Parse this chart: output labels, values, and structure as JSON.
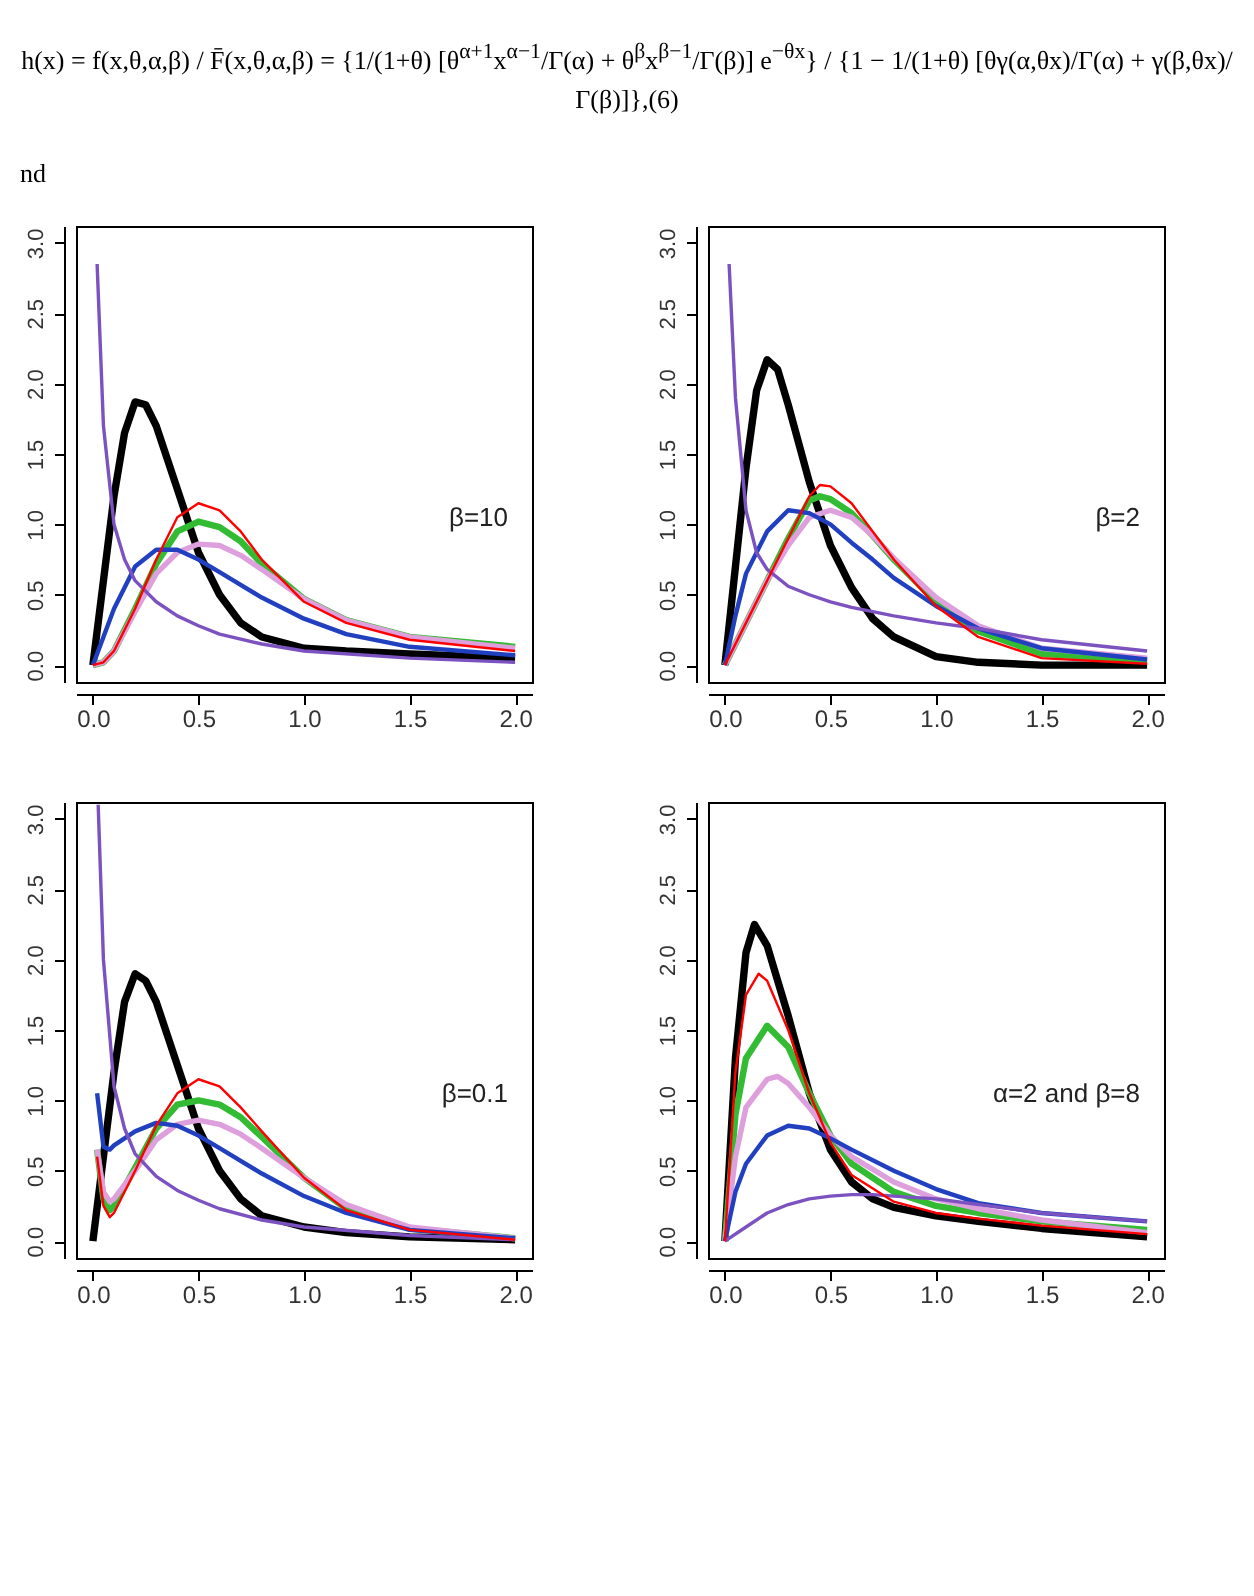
{
  "chart_data": [
    {
      "type": "line",
      "annotations": [
        "h(x) = f(x,θ,α,β) / F̄(x,θ,α,β) = {1/(1+θ) [θ$^{α+1}$x$^{α−1}$/Γ(α) + θ$^{β}$x$^{β−1}$/Γ(β)] e$^{−θx}$} / {1 − 1/(1+θ) [θγ(α,θx)/Γ(α) + γ(β,θx)/Γ(β)]},(6)",
        "nd",
        "β=10"
      ],
      "xlim": [
        -0.08,
        2.08
      ],
      "ylim": [
        -0.12,
        3.12
      ],
      "xticks": [
        {
          "value": 0,
          "label": "0.0"
        },
        {
          "value": 0.5,
          "label": "0.5"
        },
        {
          "value": 1,
          "label": "1.0"
        },
        {
          "value": 1.5,
          "label": "1.5"
        },
        {
          "value": 2,
          "label": "2.0"
        }
      ],
      "yticks": [
        {
          "value": 0,
          "label": "0.0"
        },
        {
          "value": 0.5,
          "label": "0.5"
        },
        {
          "value": 1,
          "label": "1.0"
        },
        {
          "value": 1.5,
          "label": "1.5"
        },
        {
          "value": 2,
          "label": "2.0"
        },
        {
          "value": 2.5,
          "label": "2.5"
        },
        {
          "value": 3,
          "label": "3.0"
        }
      ],
      "series": [
        {
          "color": "#000000",
          "x": [
            0,
            0.05,
            0.1,
            0.15,
            0.2,
            0.25,
            0.3,
            0.4,
            0.5,
            0.6,
            0.7,
            0.8,
            1.0,
            1.2,
            1.5,
            2.0
          ],
          "values": [
            0,
            0.6,
            1.2,
            1.65,
            1.87,
            1.85,
            1.7,
            1.25,
            0.8,
            0.5,
            0.3,
            0.2,
            0.12,
            0.1,
            0.08,
            0.05
          ]
        },
        {
          "color": "#ff0000",
          "x": [
            0,
            0.05,
            0.1,
            0.2,
            0.3,
            0.4,
            0.5,
            0.6,
            0.7,
            0.8,
            1.0,
            1.2,
            1.5,
            2.0
          ],
          "values": [
            0,
            0.02,
            0.1,
            0.4,
            0.75,
            1.05,
            1.15,
            1.1,
            0.95,
            0.75,
            0.45,
            0.3,
            0.18,
            0.1
          ]
        },
        {
          "color": "#33bb33",
          "x": [
            0,
            0.05,
            0.1,
            0.2,
            0.3,
            0.4,
            0.5,
            0.6,
            0.7,
            0.8,
            1.0,
            1.2,
            1.5,
            2.0
          ],
          "values": [
            0,
            0.02,
            0.1,
            0.4,
            0.72,
            0.95,
            1.02,
            0.98,
            0.88,
            0.72,
            0.47,
            0.32,
            0.2,
            0.13
          ]
        },
        {
          "color": "#dda0dd",
          "x": [
            0,
            0.05,
            0.1,
            0.2,
            0.3,
            0.4,
            0.5,
            0.6,
            0.7,
            0.8,
            1.0,
            1.2,
            1.5,
            2.0
          ],
          "values": [
            0,
            0.02,
            0.1,
            0.38,
            0.65,
            0.8,
            0.86,
            0.85,
            0.78,
            0.68,
            0.47,
            0.32,
            0.2,
            0.12
          ]
        },
        {
          "color": "#2040c0",
          "x": [
            0,
            0.05,
            0.1,
            0.2,
            0.3,
            0.4,
            0.5,
            0.6,
            0.7,
            0.8,
            1.0,
            1.2,
            1.5,
            2.0
          ],
          "values": [
            0,
            0.2,
            0.4,
            0.7,
            0.82,
            0.82,
            0.75,
            0.66,
            0.57,
            0.48,
            0.33,
            0.22,
            0.13,
            0.07
          ]
        },
        {
          "color": "#7b52c0",
          "x": [
            0.02,
            0.05,
            0.1,
            0.15,
            0.2,
            0.3,
            0.4,
            0.5,
            0.6,
            0.8,
            1.0,
            1.5,
            2.0
          ],
          "values": [
            2.85,
            1.7,
            1.0,
            0.75,
            0.6,
            0.45,
            0.35,
            0.28,
            0.22,
            0.15,
            0.1,
            0.05,
            0.02
          ]
        }
      ]
    },
    {
      "type": "line",
      "annotations": [
        "β=2"
      ],
      "xlim": [
        -0.08,
        2.08
      ],
      "ylim": [
        -0.12,
        3.12
      ],
      "xticks": [
        {
          "value": 0,
          "label": "0.0"
        },
        {
          "value": 0.5,
          "label": "0.5"
        },
        {
          "value": 1,
          "label": "1.0"
        },
        {
          "value": 1.5,
          "label": "1.5"
        },
        {
          "value": 2,
          "label": "2.0"
        }
      ],
      "yticks": [
        {
          "value": 0,
          "label": "0.0"
        },
        {
          "value": 0.5,
          "label": "0.5"
        },
        {
          "value": 1,
          "label": "1.0"
        },
        {
          "value": 1.5,
          "label": "1.5"
        },
        {
          "value": 2,
          "label": "2.0"
        },
        {
          "value": 2.5,
          "label": "2.5"
        },
        {
          "value": 3,
          "label": "3.0"
        }
      ],
      "series": [
        {
          "color": "#000000",
          "x": [
            0,
            0.05,
            0.1,
            0.15,
            0.2,
            0.25,
            0.3,
            0.4,
            0.5,
            0.6,
            0.7,
            0.8,
            1.0,
            1.2,
            1.5,
            2.0
          ],
          "values": [
            0,
            0.7,
            1.4,
            1.95,
            2.17,
            2.1,
            1.85,
            1.3,
            0.85,
            0.55,
            0.33,
            0.2,
            0.06,
            0.02,
            0,
            0
          ]
        },
        {
          "color": "#ff0000",
          "x": [
            0,
            0.1,
            0.2,
            0.3,
            0.4,
            0.45,
            0.5,
            0.6,
            0.7,
            0.8,
            1.0,
            1.2,
            1.5,
            2.0
          ],
          "values": [
            0,
            0.3,
            0.6,
            0.9,
            1.2,
            1.28,
            1.27,
            1.15,
            0.95,
            0.75,
            0.42,
            0.2,
            0.05,
            0.01
          ]
        },
        {
          "color": "#33bb33",
          "x": [
            0,
            0.1,
            0.2,
            0.3,
            0.4,
            0.45,
            0.5,
            0.6,
            0.7,
            0.8,
            1.0,
            1.2,
            1.5,
            2.0
          ],
          "values": [
            0,
            0.3,
            0.6,
            0.9,
            1.17,
            1.2,
            1.18,
            1.08,
            0.92,
            0.75,
            0.45,
            0.24,
            0.08,
            0.03
          ]
        },
        {
          "color": "#dda0dd",
          "x": [
            0,
            0.1,
            0.2,
            0.3,
            0.4,
            0.5,
            0.6,
            0.7,
            0.8,
            1.0,
            1.2,
            1.5,
            2.0
          ],
          "values": [
            0,
            0.3,
            0.6,
            0.85,
            1.05,
            1.1,
            1.05,
            0.92,
            0.76,
            0.48,
            0.28,
            0.12,
            0.05
          ]
        },
        {
          "color": "#2040c0",
          "x": [
            0,
            0.05,
            0.1,
            0.2,
            0.3,
            0.4,
            0.5,
            0.6,
            0.7,
            0.8,
            1.0,
            1.2,
            1.5,
            2.0
          ],
          "values": [
            0,
            0.35,
            0.65,
            0.95,
            1.1,
            1.08,
            1.0,
            0.87,
            0.75,
            0.62,
            0.42,
            0.26,
            0.12,
            0.04
          ]
        },
        {
          "color": "#7b52c0",
          "x": [
            0.02,
            0.05,
            0.1,
            0.15,
            0.2,
            0.3,
            0.4,
            0.5,
            0.6,
            0.8,
            1.0,
            1.2,
            1.5,
            2.0
          ],
          "values": [
            2.85,
            1.9,
            1.1,
            0.8,
            0.68,
            0.56,
            0.5,
            0.45,
            0.41,
            0.35,
            0.3,
            0.26,
            0.18,
            0.1
          ]
        }
      ]
    },
    {
      "type": "line",
      "annotations": [
        "β=0.1"
      ],
      "xlim": [
        -0.08,
        2.08
      ],
      "ylim": [
        -0.12,
        3.12
      ],
      "xticks": [
        {
          "value": 0,
          "label": "0.0"
        },
        {
          "value": 0.5,
          "label": "0.5"
        },
        {
          "value": 1,
          "label": "1.0"
        },
        {
          "value": 1.5,
          "label": "1.5"
        },
        {
          "value": 2,
          "label": "2.0"
        }
      ],
      "yticks": [
        {
          "value": 0,
          "label": "0.0"
        },
        {
          "value": 0.5,
          "label": "0.5"
        },
        {
          "value": 1,
          "label": "1.0"
        },
        {
          "value": 1.5,
          "label": "1.5"
        },
        {
          "value": 2,
          "label": "2.0"
        },
        {
          "value": 2.5,
          "label": "2.5"
        },
        {
          "value": 3,
          "label": "3.0"
        }
      ],
      "series": [
        {
          "color": "#000000",
          "x": [
            0,
            0.05,
            0.1,
            0.15,
            0.2,
            0.25,
            0.3,
            0.4,
            0.5,
            0.6,
            0.7,
            0.8,
            1.0,
            1.2,
            1.5,
            2.0
          ],
          "values": [
            0,
            0.6,
            1.2,
            1.7,
            1.9,
            1.85,
            1.7,
            1.25,
            0.8,
            0.5,
            0.3,
            0.18,
            0.1,
            0.06,
            0.03,
            0.01
          ]
        },
        {
          "color": "#ff0000",
          "x": [
            0.02,
            0.05,
            0.08,
            0.1,
            0.2,
            0.3,
            0.4,
            0.5,
            0.6,
            0.7,
            0.8,
            1.0,
            1.2,
            1.5,
            2.0
          ],
          "values": [
            0.6,
            0.25,
            0.17,
            0.2,
            0.5,
            0.82,
            1.05,
            1.15,
            1.1,
            0.95,
            0.78,
            0.45,
            0.22,
            0.08,
            0.01
          ]
        },
        {
          "color": "#33bb33",
          "x": [
            0.02,
            0.05,
            0.08,
            0.1,
            0.2,
            0.3,
            0.4,
            0.5,
            0.6,
            0.7,
            0.8,
            1.0,
            1.2,
            1.5,
            2.0
          ],
          "values": [
            0.65,
            0.3,
            0.22,
            0.25,
            0.52,
            0.8,
            0.97,
            1.0,
            0.97,
            0.88,
            0.74,
            0.45,
            0.23,
            0.09,
            0.02
          ]
        },
        {
          "color": "#dda0dd",
          "x": [
            0.02,
            0.05,
            0.08,
            0.1,
            0.2,
            0.3,
            0.4,
            0.5,
            0.6,
            0.7,
            0.8,
            1.0,
            1.2,
            1.5,
            2.0
          ],
          "values": [
            0.65,
            0.35,
            0.28,
            0.3,
            0.5,
            0.72,
            0.83,
            0.86,
            0.83,
            0.76,
            0.66,
            0.45,
            0.26,
            0.1,
            0.02
          ]
        },
        {
          "color": "#2040c0",
          "x": [
            0.02,
            0.05,
            0.08,
            0.1,
            0.2,
            0.3,
            0.4,
            0.5,
            0.6,
            0.7,
            0.8,
            1.0,
            1.2,
            1.5,
            2.0
          ],
          "values": [
            1.05,
            0.67,
            0.65,
            0.68,
            0.78,
            0.84,
            0.82,
            0.75,
            0.66,
            0.57,
            0.48,
            0.32,
            0.2,
            0.08,
            0.02
          ]
        },
        {
          "color": "#7b52c0",
          "x": [
            0.025,
            0.05,
            0.1,
            0.15,
            0.2,
            0.3,
            0.4,
            0.5,
            0.6,
            0.8,
            1.0,
            1.5,
            2.0
          ],
          "values": [
            3.1,
            2.0,
            1.1,
            0.8,
            0.62,
            0.46,
            0.36,
            0.29,
            0.23,
            0.15,
            0.1,
            0.04,
            0.01
          ]
        }
      ]
    },
    {
      "type": "line",
      "annotations": [
        "α=2 and β=8"
      ],
      "xlim": [
        -0.08,
        2.08
      ],
      "ylim": [
        -0.12,
        3.12
      ],
      "xticks": [
        {
          "value": 0,
          "label": "0.0"
        },
        {
          "value": 0.5,
          "label": "0.5"
        },
        {
          "value": 1,
          "label": "1.0"
        },
        {
          "value": 1.5,
          "label": "1.5"
        },
        {
          "value": 2,
          "label": "2.0"
        }
      ],
      "yticks": [
        {
          "value": 0,
          "label": "0.0"
        },
        {
          "value": 0.5,
          "label": "0.5"
        },
        {
          "value": 1,
          "label": "1.0"
        },
        {
          "value": 1.5,
          "label": "1.5"
        },
        {
          "value": 2,
          "label": "2.0"
        },
        {
          "value": 2.5,
          "label": "2.5"
        },
        {
          "value": 3,
          "label": "3.0"
        }
      ],
      "series": [
        {
          "color": "#000000",
          "x": [
            0,
            0.05,
            0.1,
            0.14,
            0.2,
            0.3,
            0.4,
            0.5,
            0.6,
            0.7,
            0.8,
            1.0,
            1.2,
            1.5,
            2.0
          ],
          "values": [
            0,
            1.3,
            2.05,
            2.25,
            2.1,
            1.6,
            1.05,
            0.65,
            0.42,
            0.3,
            0.24,
            0.18,
            0.14,
            0.09,
            0.03
          ]
        },
        {
          "color": "#ff0000",
          "x": [
            0,
            0.05,
            0.1,
            0.16,
            0.2,
            0.3,
            0.4,
            0.5,
            0.6,
            0.8,
            1.0,
            1.2,
            1.5,
            2.0
          ],
          "values": [
            0,
            1.2,
            1.75,
            1.9,
            1.85,
            1.5,
            1.05,
            0.7,
            0.47,
            0.28,
            0.2,
            0.16,
            0.11,
            0.05
          ]
        },
        {
          "color": "#33bb33",
          "x": [
            0,
            0.05,
            0.1,
            0.2,
            0.3,
            0.4,
            0.5,
            0.6,
            0.8,
            1.0,
            1.2,
            1.5,
            2.0
          ],
          "values": [
            0,
            0.9,
            1.3,
            1.53,
            1.38,
            1.05,
            0.75,
            0.55,
            0.35,
            0.25,
            0.2,
            0.14,
            0.08
          ]
        },
        {
          "color": "#dda0dd",
          "x": [
            0,
            0.05,
            0.1,
            0.2,
            0.25,
            0.3,
            0.4,
            0.5,
            0.6,
            0.8,
            1.0,
            1.2,
            1.5,
            2.0
          ],
          "values": [
            0,
            0.6,
            0.95,
            1.15,
            1.17,
            1.12,
            0.95,
            0.75,
            0.6,
            0.42,
            0.3,
            0.23,
            0.15,
            0.06
          ]
        },
        {
          "color": "#2040c0",
          "x": [
            0,
            0.05,
            0.1,
            0.2,
            0.3,
            0.4,
            0.5,
            0.6,
            0.8,
            1.0,
            1.2,
            1.5,
            2.0
          ],
          "values": [
            0,
            0.35,
            0.55,
            0.75,
            0.82,
            0.8,
            0.73,
            0.65,
            0.5,
            0.37,
            0.27,
            0.2,
            0.14
          ]
        },
        {
          "color": "#7b52c0",
          "x": [
            0,
            0.1,
            0.2,
            0.3,
            0.4,
            0.5,
            0.6,
            0.7,
            0.8,
            1.0,
            1.2,
            1.5,
            2.0
          ],
          "values": [
            0,
            0.1,
            0.2,
            0.26,
            0.3,
            0.32,
            0.33,
            0.33,
            0.32,
            0.3,
            0.26,
            0.2,
            0.14
          ]
        }
      ]
    }
  ]
}
